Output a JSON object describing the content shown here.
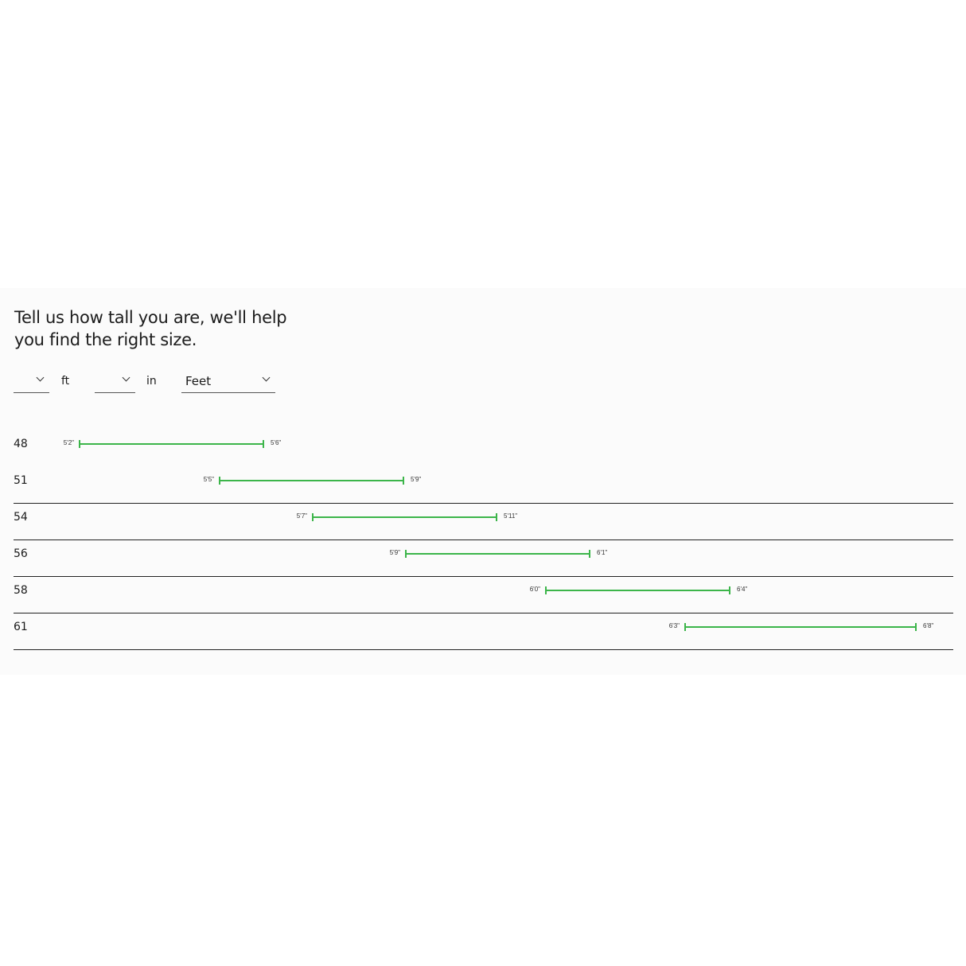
{
  "heading": "Tell us how tall you are, we'll help you find the right size.",
  "controls": {
    "feet_select": {
      "value": "",
      "unit_label": "ft"
    },
    "inches_select": {
      "value": "",
      "unit_label": "in"
    },
    "unit_select": {
      "value": "Feet"
    }
  },
  "bar_color": "#3cb54a",
  "sizes": [
    {
      "size": "48",
      "min": "5'2\"",
      "max": "5'6\""
    },
    {
      "size": "51",
      "min": "5'5\"",
      "max": "5'9\""
    },
    {
      "size": "54",
      "min": "5'7\"",
      "max": "5'11\""
    },
    {
      "size": "56",
      "min": "5'9\"",
      "max": "6'1\""
    },
    {
      "size": "58",
      "min": "6'0\"",
      "max": "6'4\""
    },
    {
      "size": "61",
      "min": "6'3\"",
      "max": "6'8\""
    }
  ]
}
